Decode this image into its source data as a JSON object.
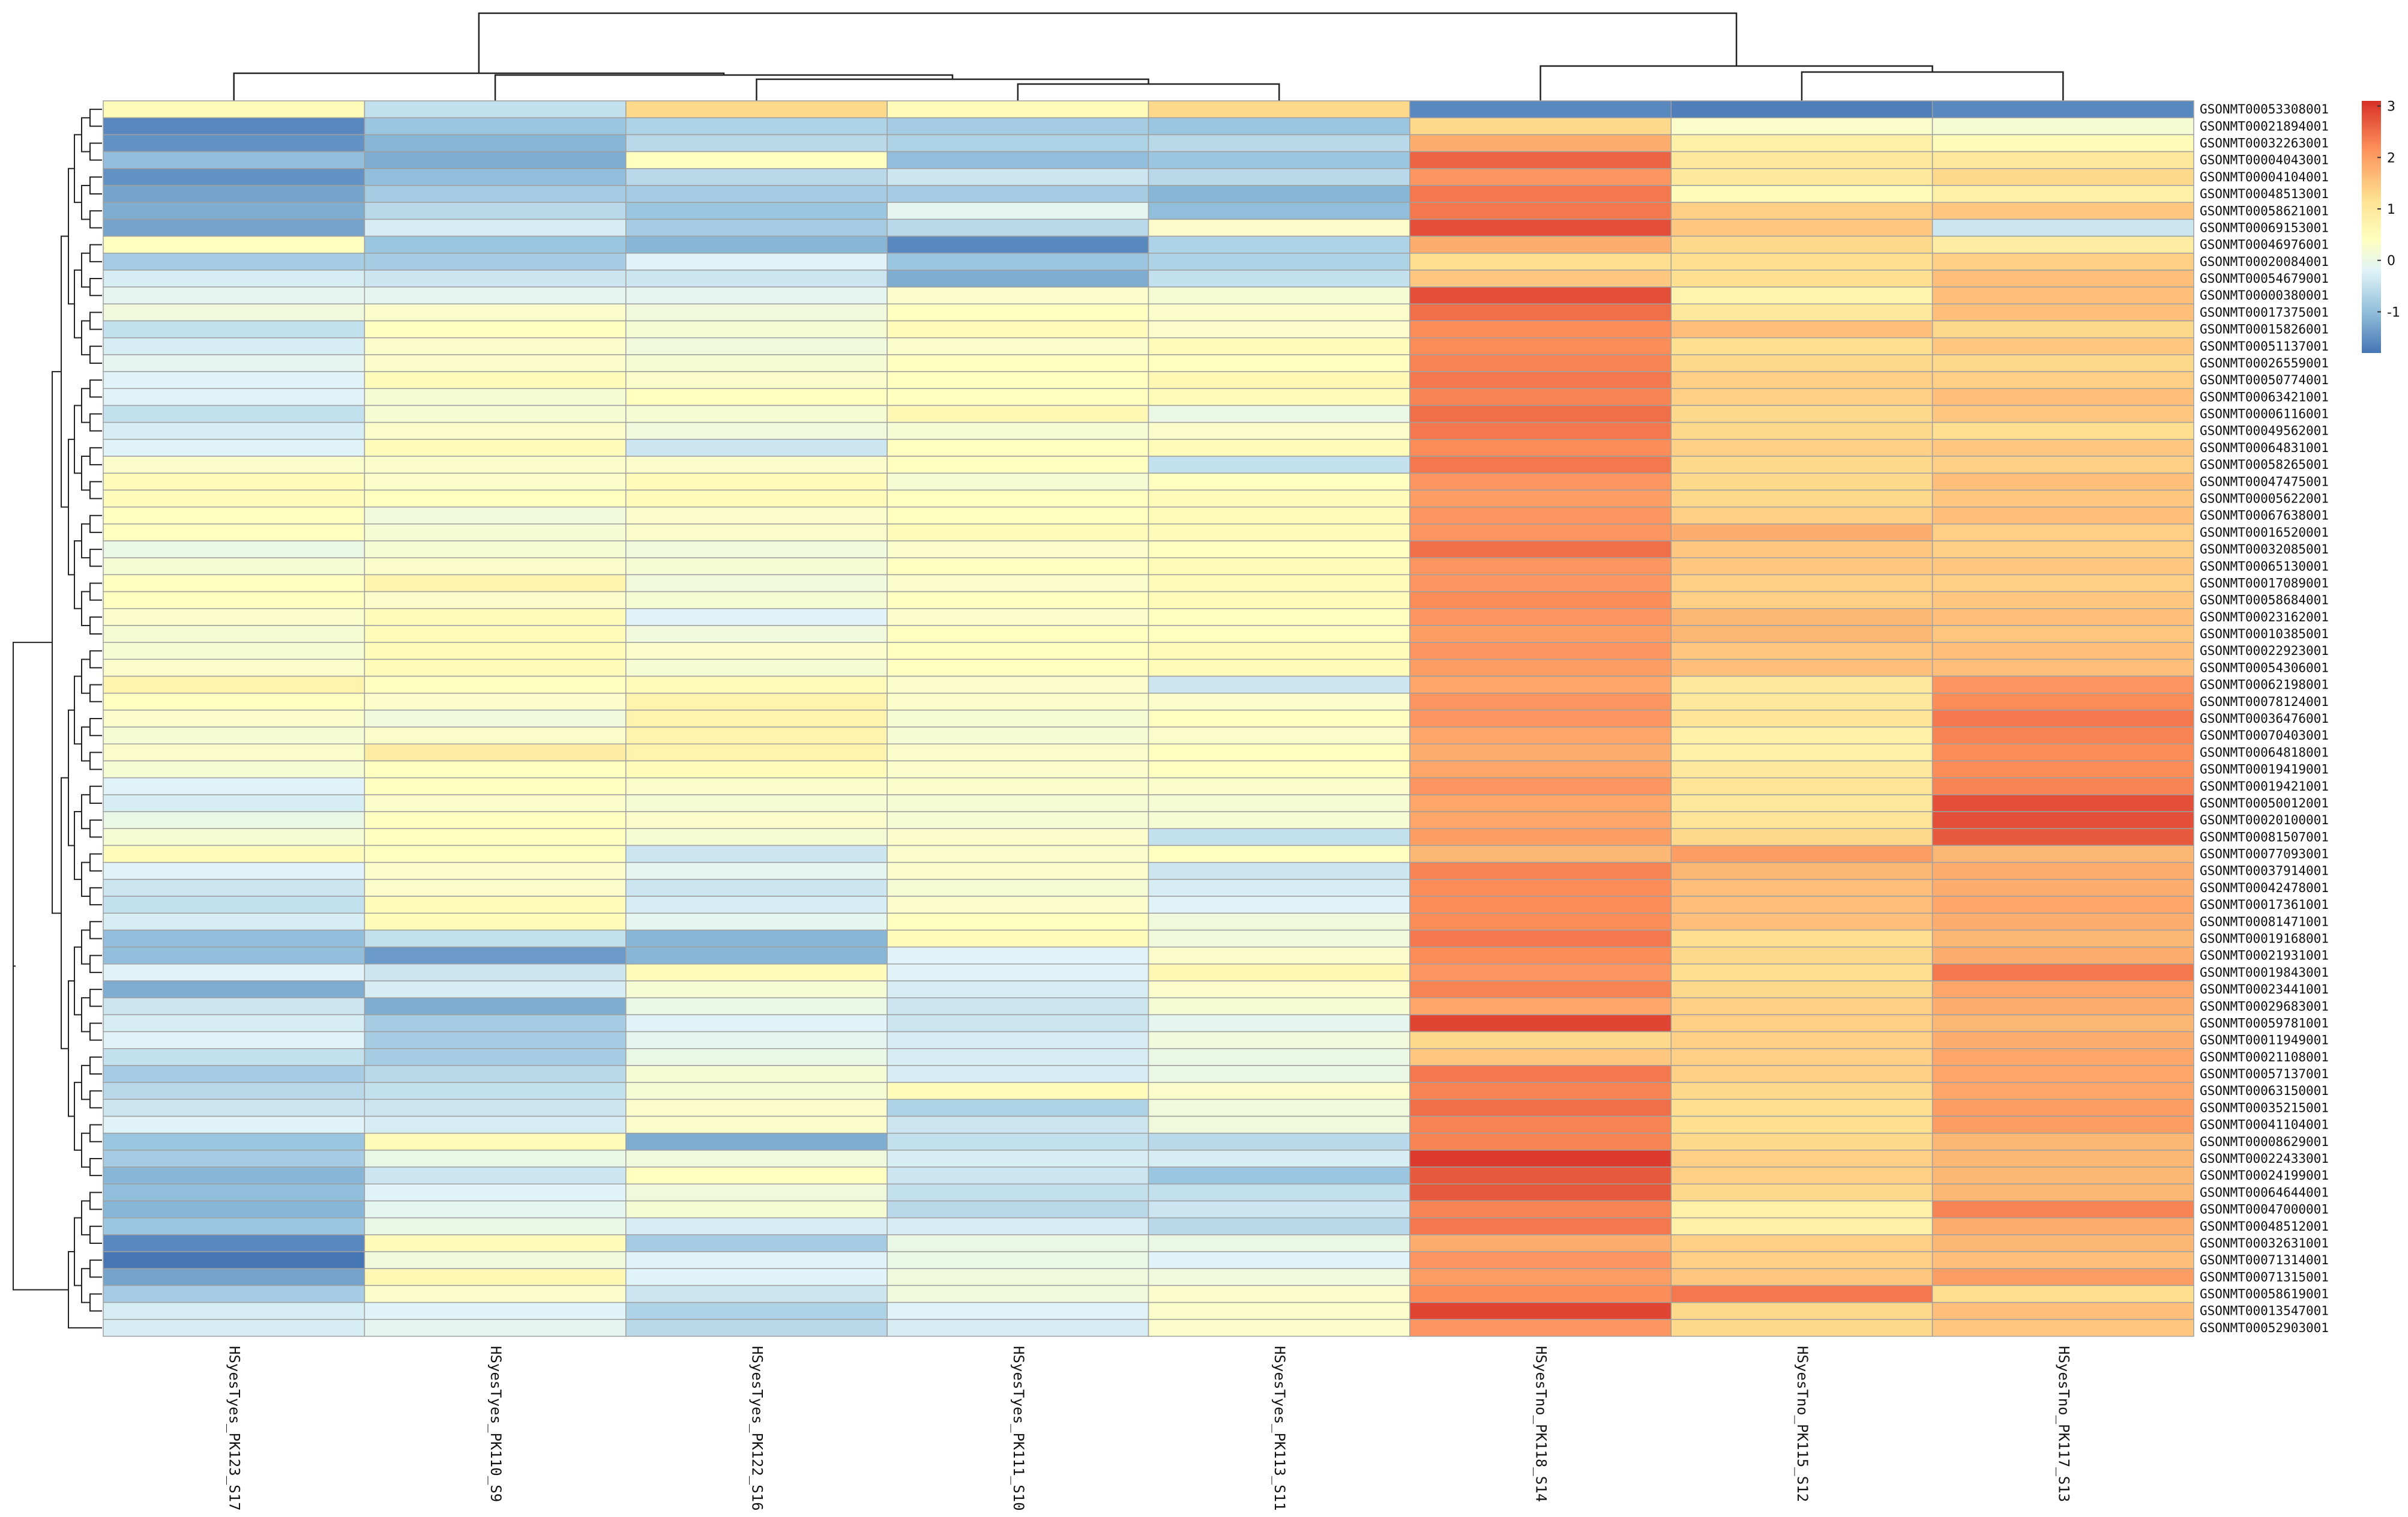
{
  "chart_data": {
    "type": "heatmap",
    "title": "",
    "columns": [
      "HSyesTyes_PK123_S17",
      "HSyesTyes_PK110_S9",
      "HSyesTyes_PK122_S16",
      "HSyesTyes_PK111_S10",
      "HSyesTyes_PK113_S11",
      "HSyesTno_PK118_S14",
      "HSyesTno_PK115_S12",
      "HSyesTno_PK117_S13"
    ],
    "rows": [
      "GSONMT00053308001",
      "GSONMT00021894001",
      "GSONMT00032263001",
      "GSONMT00004043001",
      "GSONMT00004104001",
      "GSONMT00048513001",
      "GSONMT00058621001",
      "GSONMT00069153001",
      "GSONMT00046976001",
      "GSONMT00020084001",
      "GSONMT00054679001",
      "GSONMT00000380001",
      "GSONMT00017375001",
      "GSONMT00015826001",
      "GSONMT00051137001",
      "GSONMT00026559001",
      "GSONMT00050774001",
      "GSONMT00063421001",
      "GSONMT00006116001",
      "GSONMT00049562001",
      "GSONMT00064831001",
      "GSONMT00058265001",
      "GSONMT00047475001",
      "GSONMT00005622001",
      "GSONMT00067638001",
      "GSONMT00016520001",
      "GSONMT00032085001",
      "GSONMT00065130001",
      "GSONMT00017089001",
      "GSONMT00058684001",
      "GSONMT00023162001",
      "GSONMT00010385001",
      "GSONMT00022923001",
      "GSONMT00054306001",
      "GSONMT00062198001",
      "GSONMT00078124001",
      "GSONMT00036476001",
      "GSONMT00070403001",
      "GSONMT00064818001",
      "GSONMT00019419001",
      "GSONMT00019421001",
      "GSONMT00050012001",
      "GSONMT00020100001",
      "GSONMT00081507001",
      "GSONMT00077093001",
      "GSONMT00037914001",
      "GSONMT00042478001",
      "GSONMT00017361001",
      "GSONMT00081471001",
      "GSONMT00019168001",
      "GSONMT00021931001",
      "GSONMT00019843001",
      "GSONMT00023441001",
      "GSONMT00029683001",
      "GSONMT00059781001",
      "GSONMT00011949001",
      "GSONMT00021108001",
      "GSONMT00057137001",
      "GSONMT00063150001",
      "GSONMT00035215001",
      "GSONMT00041104001",
      "GSONMT00008629001",
      "GSONMT00022433001",
      "GSONMT00024199001",
      "GSONMT00064644001",
      "GSONMT00047000001",
      "GSONMT00048512001",
      "GSONMT00032631001",
      "GSONMT00071314001",
      "GSONMT00071315001",
      "GSONMT00058619001",
      "GSONMT00013547001",
      "GSONMT00052903001"
    ],
    "values": [
      [
        0.5,
        -0.5,
        1.3,
        0.5,
        1.3,
        -1.6,
        -1.7,
        -1.6
      ],
      [
        -1.6,
        -0.9,
        -0.7,
        -0.8,
        -0.9,
        1.3,
        0.3,
        0.2
      ],
      [
        -1.5,
        -1.1,
        -0.6,
        -0.7,
        -0.6,
        1.8,
        0.8,
        0.5
      ],
      [
        -1.0,
        -1.2,
        0.4,
        -1.0,
        -0.9,
        2.6,
        1.0,
        1.0
      ],
      [
        -1.5,
        -1.0,
        -0.6,
        -0.4,
        -0.6,
        2.1,
        1.0,
        1.3
      ],
      [
        -1.3,
        -0.8,
        -0.8,
        -0.8,
        -1.1,
        2.4,
        0.5,
        0.8
      ],
      [
        -1.2,
        -0.6,
        -0.9,
        -0.1,
        -1.0,
        2.4,
        1.4,
        1.5
      ],
      [
        -1.3,
        -0.3,
        -0.8,
        -0.6,
        0.3,
        2.8,
        1.5,
        -0.4
      ],
      [
        0.4,
        -0.9,
        -1.1,
        -1.6,
        -0.7,
        1.8,
        1.3,
        0.9
      ],
      [
        -0.8,
        -0.8,
        -0.2,
        -0.9,
        -0.7,
        1.2,
        1.2,
        1.4
      ],
      [
        -0.3,
        -0.4,
        -0.4,
        -1.2,
        -0.5,
        1.5,
        1.2,
        1.6
      ],
      [
        -0.1,
        -0.1,
        -0.1,
        0.3,
        0.2,
        2.8,
        0.7,
        1.6
      ],
      [
        0.1,
        0.3,
        0.1,
        0.4,
        0.3,
        2.5,
        1.0,
        1.6
      ],
      [
        -0.5,
        0.4,
        0.2,
        0.5,
        0.3,
        2.2,
        1.6,
        1.3
      ],
      [
        -0.3,
        0.3,
        0.1,
        0.3,
        0.5,
        2.2,
        1.2,
        1.5
      ],
      [
        -0.1,
        0.3,
        0.2,
        0.4,
        0.4,
        2.3,
        1.3,
        1.3
      ],
      [
        -0.2,
        0.5,
        0.3,
        0.4,
        0.6,
        2.4,
        1.4,
        1.4
      ],
      [
        -0.2,
        0.2,
        0.4,
        0.4,
        0.5,
        2.3,
        1.4,
        1.6
      ],
      [
        -0.5,
        0.2,
        0.2,
        0.6,
        0.0,
        2.5,
        1.3,
        1.5
      ],
      [
        -0.3,
        0.3,
        0.1,
        0.2,
        0.3,
        2.4,
        1.3,
        1.2
      ],
      [
        -0.2,
        0.5,
        -0.4,
        0.4,
        0.5,
        2.2,
        1.4,
        1.5
      ],
      [
        0.3,
        0.3,
        0.3,
        0.4,
        -0.5,
        2.4,
        1.3,
        1.4
      ],
      [
        0.5,
        0.3,
        0.5,
        0.2,
        0.4,
        2.1,
        1.3,
        1.6
      ],
      [
        0.5,
        0.4,
        0.5,
        0.4,
        0.5,
        2.0,
        1.3,
        1.5
      ],
      [
        0.4,
        0.1,
        0.3,
        0.4,
        0.5,
        2.1,
        1.4,
        1.6
      ],
      [
        0.4,
        0.2,
        0.3,
        0.5,
        0.5,
        2.1,
        1.8,
        1.4
      ],
      [
        0.0,
        0.2,
        0.1,
        0.3,
        0.4,
        2.5,
        1.5,
        1.4
      ],
      [
        0.2,
        0.3,
        0.2,
        0.4,
        0.5,
        2.1,
        1.5,
        1.5
      ],
      [
        0.4,
        0.7,
        0.1,
        0.3,
        0.5,
        2.1,
        1.4,
        1.4
      ],
      [
        0.4,
        0.3,
        0.2,
        0.4,
        0.5,
        2.2,
        1.4,
        1.5
      ],
      [
        0.3,
        0.5,
        -0.2,
        0.3,
        0.4,
        2.1,
        1.7,
        1.6
      ],
      [
        0.2,
        0.5,
        0.1,
        0.4,
        0.4,
        2.0,
        1.7,
        1.5
      ],
      [
        0.2,
        0.5,
        0.3,
        0.4,
        0.5,
        2.1,
        1.5,
        1.6
      ],
      [
        0.3,
        0.5,
        0.2,
        0.4,
        0.5,
        2.0,
        1.6,
        1.6
      ],
      [
        0.7,
        0.4,
        0.5,
        0.3,
        -0.4,
        1.9,
        1.0,
        2.1
      ],
      [
        0.4,
        0.3,
        0.7,
        0.3,
        0.3,
        2.1,
        1.0,
        2.2
      ],
      [
        0.3,
        0.1,
        0.7,
        0.2,
        0.4,
        2.1,
        1.1,
        2.4
      ],
      [
        0.2,
        0.3,
        0.7,
        0.2,
        0.3,
        1.9,
        0.8,
        2.3
      ],
      [
        0.3,
        0.9,
        0.7,
        0.3,
        0.4,
        1.8,
        0.8,
        2.2
      ],
      [
        0.2,
        0.4,
        0.5,
        0.3,
        0.4,
        1.9,
        1.0,
        2.2
      ],
      [
        -0.2,
        0.4,
        0.3,
        0.3,
        0.3,
        2.1,
        1.1,
        2.3
      ],
      [
        -0.3,
        0.3,
        0.2,
        0.2,
        0.2,
        1.9,
        1.0,
        2.8
      ],
      [
        0.0,
        0.4,
        0.3,
        0.2,
        0.2,
        1.9,
        1.1,
        2.8
      ],
      [
        0.2,
        0.4,
        0.2,
        0.3,
        -0.5,
        2.0,
        1.3,
        2.7
      ],
      [
        0.5,
        0.4,
        -0.4,
        0.3,
        0.4,
        1.7,
        2.0,
        1.7
      ],
      [
        -0.2,
        0.3,
        -0.1,
        0.3,
        -0.4,
        2.3,
        1.7,
        1.8
      ],
      [
        -0.4,
        0.3,
        -0.4,
        0.2,
        -0.3,
        2.2,
        1.6,
        1.8
      ],
      [
        -0.5,
        0.5,
        -0.3,
        0.3,
        -0.2,
        2.2,
        1.6,
        1.9
      ],
      [
        -0.3,
        0.5,
        -0.1,
        0.4,
        0.1,
        2.2,
        1.6,
        1.8
      ],
      [
        -1.0,
        -0.5,
        -1.1,
        0.5,
        0.1,
        2.4,
        1.2,
        1.7
      ],
      [
        -1.0,
        -1.4,
        -1.1,
        -0.2,
        0.3,
        2.2,
        1.3,
        1.8
      ],
      [
        -0.2,
        -0.4,
        0.5,
        -0.2,
        0.6,
        2.1,
        1.2,
        2.4
      ],
      [
        -1.2,
        -0.3,
        0.2,
        -0.3,
        0.3,
        2.3,
        1.3,
        1.9
      ],
      [
        -0.4,
        -1.2,
        0.0,
        -0.4,
        0.2,
        1.9,
        1.4,
        1.8
      ],
      [
        -0.3,
        -0.8,
        -0.2,
        -0.4,
        -0.1,
        2.9,
        1.4,
        1.7
      ],
      [
        -0.2,
        -0.8,
        -0.1,
        -0.3,
        0.1,
        1.3,
        1.4,
        1.8
      ],
      [
        -0.5,
        -0.8,
        0.0,
        -0.3,
        0.0,
        1.5,
        1.4,
        1.9
      ],
      [
        -0.8,
        -0.6,
        0.2,
        -0.3,
        0.0,
        2.4,
        1.4,
        1.9
      ],
      [
        -0.6,
        -0.5,
        0.2,
        0.5,
        0.3,
        2.3,
        1.3,
        1.9
      ],
      [
        -0.4,
        -0.4,
        0.3,
        -0.7,
        0.1,
        2.5,
        1.2,
        2.0
      ],
      [
        -0.2,
        -0.3,
        0.3,
        -0.4,
        0.1,
        2.3,
        1.2,
        2.0
      ],
      [
        -0.9,
        0.5,
        -1.2,
        -0.5,
        -0.6,
        2.3,
        1.3,
        1.7
      ],
      [
        -0.8,
        0.0,
        0.1,
        -0.3,
        -0.3,
        3.0,
        1.4,
        1.7
      ],
      [
        -1.1,
        -0.4,
        0.4,
        -0.4,
        -0.9,
        2.7,
        1.4,
        1.7
      ],
      [
        -1.0,
        -0.2,
        0.1,
        -0.5,
        -0.5,
        2.7,
        1.3,
        1.7
      ],
      [
        -1.1,
        -0.1,
        0.2,
        -0.6,
        -0.4,
        2.3,
        0.8,
        2.3
      ],
      [
        -0.9,
        0.0,
        -0.3,
        -0.3,
        -0.6,
        2.4,
        0.8,
        1.8
      ],
      [
        -1.6,
        0.5,
        -0.8,
        0.0,
        0.0,
        1.8,
        1.4,
        1.7
      ],
      [
        -1.8,
        0.1,
        -0.2,
        0.0,
        -0.2,
        2.1,
        1.4,
        1.6
      ],
      [
        -1.3,
        0.6,
        -0.2,
        0.1,
        0.1,
        2.0,
        1.5,
        2.0
      ],
      [
        -0.8,
        0.3,
        -0.4,
        0.1,
        0.3,
        2.2,
        2.4,
        1.2
      ],
      [
        -0.3,
        -0.2,
        -0.7,
        -0.2,
        0.3,
        2.9,
        1.3,
        1.6
      ],
      [
        -0.3,
        -0.1,
        -0.6,
        -0.3,
        0.3,
        2.1,
        1.3,
        1.5
      ]
    ],
    "color_scale": {
      "min": -1.8,
      "max": 3.1,
      "colors": [
        "#4575b4",
        "#91bfdb",
        "#e0f3f8",
        "#ffffbf",
        "#fee090",
        "#fc8d59",
        "#d73027"
      ],
      "stops": [
        -1.8,
        -1.0,
        -0.2,
        0.4,
        1.2,
        2.2,
        3.1
      ],
      "ticks": [
        -1,
        0,
        1,
        2,
        3
      ]
    },
    "row_dendrogram": true,
    "column_dendrogram": true
  }
}
